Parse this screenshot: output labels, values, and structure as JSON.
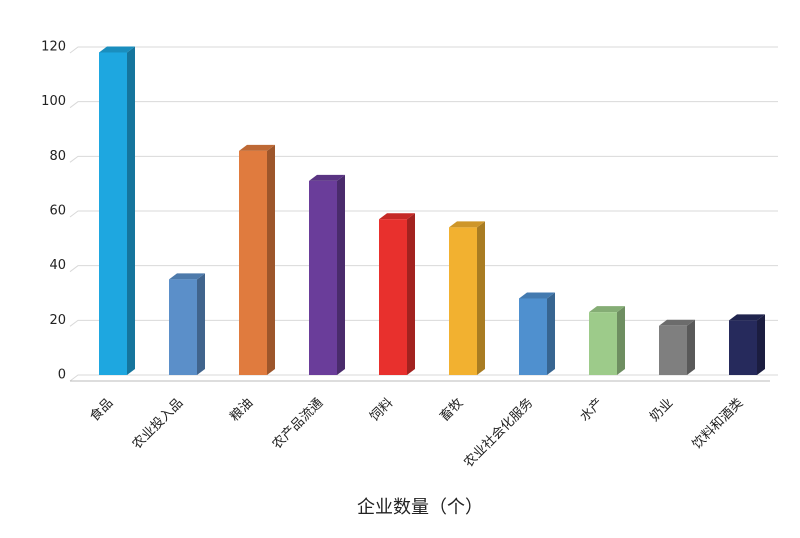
{
  "chart_data": {
    "type": "bar3d",
    "x_axis_label": "企业数量（个）",
    "categories": [
      "食品",
      "农业投入品",
      "粮油",
      "农产品流通",
      "饲料",
      "畜牧",
      "农业社会化服务",
      "水产",
      "奶业",
      "饮料和酒类"
    ],
    "values": [
      118,
      35,
      82,
      71,
      57,
      54,
      28,
      23,
      18,
      20
    ],
    "colors": [
      "#1ea7e0",
      "#5b8fc9",
      "#e07b3e",
      "#6a3d9a",
      "#e8302d",
      "#f2b130",
      "#4f90cf",
      "#9dcb8a",
      "#7f7f7f",
      "#262a5c"
    ],
    "ylim": [
      0,
      120
    ],
    "yticks": [
      0,
      20,
      40,
      60,
      80,
      100,
      120
    ],
    "grid": true
  }
}
